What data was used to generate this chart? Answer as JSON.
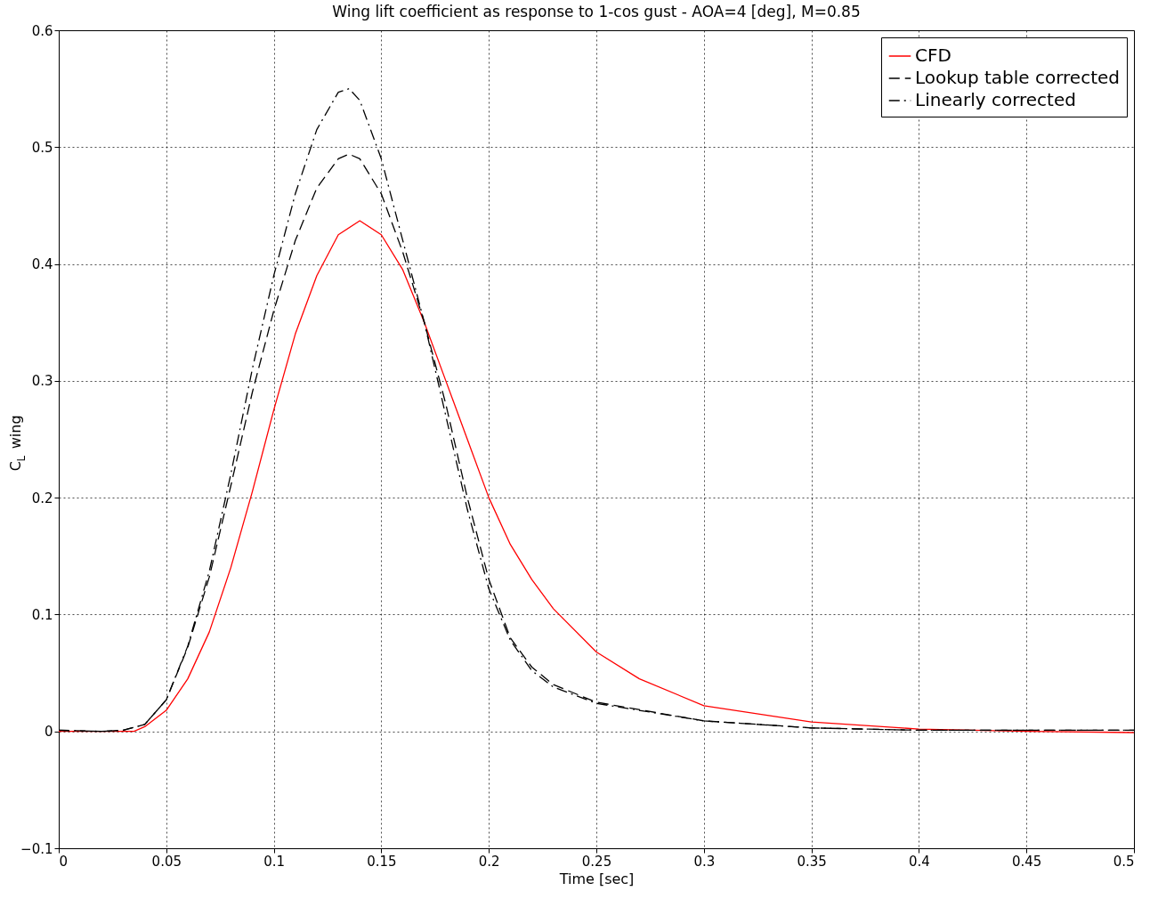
{
  "chart_data": {
    "type": "line",
    "title": "Wing lift coefficient as response to 1-cos gust - AOA=4 [deg], M=0.85",
    "xlabel": "Time [sec]",
    "ylabel": "C$_{L}$ wing",
    "xlim": [
      0,
      0.5
    ],
    "ylim": [
      -0.1,
      0.6
    ],
    "xticks": [
      0,
      0.05,
      0.1,
      0.15,
      0.2,
      0.25,
      0.3,
      0.35,
      0.4,
      0.45,
      0.5
    ],
    "yticks": [
      -0.1,
      0,
      0.1,
      0.2,
      0.3,
      0.4,
      0.5,
      0.6
    ],
    "grid": true,
    "legend": "top right",
    "series": [
      {
        "name": "CFD",
        "color": "#ff0000",
        "line_style": "solid",
        "x": [
          0,
          0.02,
          0.035,
          0.04,
          0.05,
          0.06,
          0.07,
          0.08,
          0.09,
          0.1,
          0.11,
          0.12,
          0.13,
          0.14,
          0.15,
          0.16,
          0.17,
          0.18,
          0.19,
          0.2,
          0.21,
          0.22,
          0.23,
          0.25,
          0.27,
          0.3,
          0.35,
          0.4,
          0.45,
          0.5
        ],
        "values": [
          0,
          0,
          0,
          0.004,
          0.018,
          0.045,
          0.085,
          0.14,
          0.205,
          0.275,
          0.34,
          0.39,
          0.425,
          0.437,
          0.425,
          0.395,
          0.35,
          0.3,
          0.25,
          0.2,
          0.16,
          0.13,
          0.105,
          0.068,
          0.045,
          0.022,
          0.008,
          0.002,
          0,
          -0.001
        ]
      },
      {
        "name": "Lookup table corrected",
        "color": "#000000",
        "line_style": "dashed",
        "x": [
          0,
          0.02,
          0.03,
          0.04,
          0.05,
          0.06,
          0.07,
          0.08,
          0.09,
          0.1,
          0.11,
          0.12,
          0.13,
          0.135,
          0.14,
          0.15,
          0.16,
          0.17,
          0.18,
          0.19,
          0.2,
          0.21,
          0.22,
          0.23,
          0.25,
          0.3,
          0.35,
          0.4,
          0.45,
          0.5
        ],
        "values": [
          0.001,
          0,
          0.001,
          0.006,
          0.027,
          0.072,
          0.132,
          0.21,
          0.29,
          0.36,
          0.42,
          0.465,
          0.49,
          0.494,
          0.49,
          0.46,
          0.41,
          0.35,
          0.28,
          0.2,
          0.13,
          0.08,
          0.055,
          0.04,
          0.025,
          0.009,
          0.003,
          0.001,
          0.001,
          0.001
        ]
      },
      {
        "name": "Linearly corrected",
        "color": "#000000",
        "line_style": "dashdot",
        "x": [
          0,
          0.02,
          0.03,
          0.04,
          0.05,
          0.06,
          0.07,
          0.08,
          0.09,
          0.1,
          0.11,
          0.12,
          0.13,
          0.135,
          0.14,
          0.15,
          0.16,
          0.17,
          0.18,
          0.19,
          0.2,
          0.21,
          0.22,
          0.23,
          0.25,
          0.3,
          0.35,
          0.4,
          0.45,
          0.5
        ],
        "values": [
          0.001,
          0,
          0.001,
          0.006,
          0.027,
          0.073,
          0.137,
          0.22,
          0.31,
          0.39,
          0.46,
          0.515,
          0.547,
          0.55,
          0.54,
          0.49,
          0.42,
          0.35,
          0.27,
          0.19,
          0.122,
          0.078,
          0.052,
          0.038,
          0.024,
          0.009,
          0.003,
          0.001,
          0.001,
          0.001
        ]
      }
    ]
  }
}
